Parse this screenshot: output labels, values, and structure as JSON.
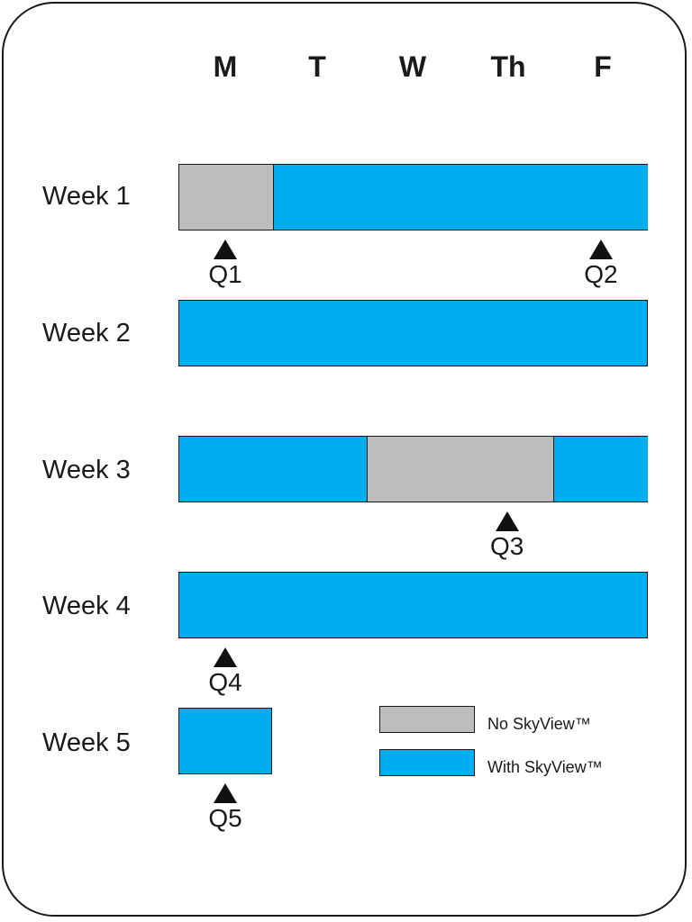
{
  "colors": {
    "no_skyview": "#bdbdbf",
    "with_skyview": "#00aeef",
    "outline": "#1a1a1a"
  },
  "days": [
    "M",
    "T",
    "W",
    "Th",
    "F"
  ],
  "weeks": [
    {
      "label": "Week 1",
      "segments": [
        {
          "status": "no_skyview",
          "days": 1
        },
        {
          "status": "with_skyview",
          "days": 4
        }
      ]
    },
    {
      "label": "Week 2",
      "segments": [
        {
          "status": "with_skyview",
          "days": 5
        }
      ]
    },
    {
      "label": "Week 3",
      "segments": [
        {
          "status": "with_skyview",
          "days": 2
        },
        {
          "status": "no_skyview",
          "days": 2
        },
        {
          "status": "with_skyview",
          "days": 1
        }
      ]
    },
    {
      "label": "Week 4",
      "segments": [
        {
          "status": "with_skyview",
          "days": 5
        }
      ]
    },
    {
      "label": "Week 5",
      "segments": [
        {
          "status": "with_skyview",
          "days": 1
        }
      ]
    }
  ],
  "markers": [
    {
      "label": "Q1",
      "week": "Week 1",
      "day": "M"
    },
    {
      "label": "Q2",
      "week": "Week 1",
      "day": "F"
    },
    {
      "label": "Q3",
      "week": "Week 3",
      "day": "Th"
    },
    {
      "label": "Q4",
      "week": "Week 4",
      "day": "M"
    },
    {
      "label": "Q5",
      "week": "Week 5",
      "day": "M"
    }
  ],
  "legend": [
    {
      "status": "no_skyview",
      "label": "No SkyView™"
    },
    {
      "status": "with_skyview",
      "label": "With SkyView™"
    }
  ]
}
